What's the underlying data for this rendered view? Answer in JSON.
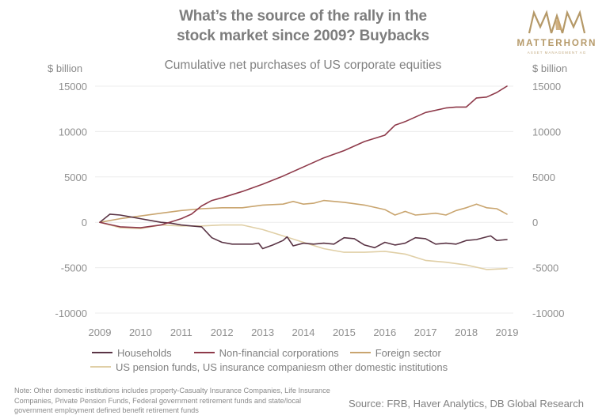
{
  "header": {
    "title_lines": [
      "What’s the source of the rally in the",
      "stock market since 2009? Buybacks"
    ],
    "subtitle": "Cumulative net purchases of US corporate equities"
  },
  "logo": {
    "mark": "MAM",
    "brand": "MATTERHORN",
    "tagline": "ASSET MANAGEMENT AG",
    "color": "#b59968"
  },
  "axes": {
    "left_unit": "$ billion",
    "right_unit": "$ billion"
  },
  "legend": {
    "items": [
      {
        "label": "Households",
        "color": "#5a3445"
      },
      {
        "label": "Non-financial corporations",
        "color": "#8e3a4a"
      },
      {
        "label": "Foreign sector",
        "color": "#c9a56f"
      },
      {
        "label": "US pension funds, US insurance companiesm other domestic institutions",
        "color": "#e0cfa6"
      }
    ]
  },
  "footer": {
    "note": "Note: Other domestic institutions includes property-Casualty Insurance Companies, Life Insurance Companies, Private Pension Funds, Federal government retirement funds and state/local government employment defined benefit retirement funds",
    "source": "Source: FRB, Haver Analytics, DB Global Research"
  },
  "chart_data": {
    "type": "line",
    "title": "What’s the source of the rally in the stock market since 2009? Buybacks",
    "subtitle": "Cumulative net purchases of US corporate equities",
    "xlabel": "",
    "ylabel": "$ billion",
    "y2label": "$ billion",
    "xlim": [
      2009,
      2019
    ],
    "ylim": [
      -10000,
      15000
    ],
    "x_ticks": [
      "2009",
      "2010",
      "2011",
      "2012",
      "2013",
      "2014",
      "2015",
      "2016",
      "2017",
      "2018",
      "2019"
    ],
    "y_ticks": [
      -10000,
      -5000,
      0,
      5000,
      10000,
      15000
    ],
    "grid": true,
    "legend_position": "bottom",
    "series": [
      {
        "name": "Households",
        "color": "#5a3445",
        "x": [
          2009.0,
          2009.25,
          2009.5,
          2009.75,
          2010.0,
          2010.25,
          2010.5,
          2010.75,
          2011.0,
          2011.25,
          2011.5,
          2011.75,
          2012.0,
          2012.25,
          2012.5,
          2012.75,
          2012.9,
          2013.0,
          2013.25,
          2013.5,
          2013.6,
          2013.75,
          2014.0,
          2014.25,
          2014.5,
          2014.75,
          2015.0,
          2015.25,
          2015.5,
          2015.75,
          2016.0,
          2016.25,
          2016.5,
          2016.75,
          2017.0,
          2017.25,
          2017.5,
          2017.75,
          2018.0,
          2018.25,
          2018.5,
          2018.6,
          2018.75,
          2019.0
        ],
        "values": [
          0,
          900,
          800,
          600,
          400,
          200,
          0,
          -100,
          -300,
          -400,
          -500,
          -1700,
          -2200,
          -2400,
          -2400,
          -2400,
          -2300,
          -2900,
          -2500,
          -2000,
          -1600,
          -2600,
          -2300,
          -2400,
          -2300,
          -2400,
          -1700,
          -1800,
          -2500,
          -2800,
          -2200,
          -2500,
          -2300,
          -1700,
          -1800,
          -2400,
          -2300,
          -2400,
          -2000,
          -1900,
          -1600,
          -1500,
          -2000,
          -1900
        ]
      },
      {
        "name": "Non-financial corporations",
        "color": "#8e3a4a",
        "x": [
          2009.0,
          2009.5,
          2010.0,
          2010.5,
          2011.0,
          2011.25,
          2011.5,
          2011.75,
          2012.0,
          2012.5,
          2013.0,
          2013.5,
          2014.0,
          2014.5,
          2015.0,
          2015.5,
          2016.0,
          2016.25,
          2016.5,
          2017.0,
          2017.5,
          2017.75,
          2018.0,
          2018.25,
          2018.5,
          2018.75,
          2019.0
        ],
        "values": [
          0,
          -500,
          -600,
          -300,
          400,
          900,
          1800,
          2400,
          2700,
          3400,
          4200,
          5100,
          6100,
          7100,
          7900,
          8900,
          9600,
          10700,
          11100,
          12100,
          12600,
          12700,
          12700,
          13700,
          13800,
          14300,
          15000
        ]
      },
      {
        "name": "Foreign sector",
        "color": "#c9a56f",
        "x": [
          2009.0,
          2009.5,
          2010.0,
          2010.5,
          2011.0,
          2011.5,
          2012.0,
          2012.5,
          2013.0,
          2013.5,
          2013.75,
          2014.0,
          2014.25,
          2014.5,
          2015.0,
          2015.5,
          2016.0,
          2016.25,
          2016.5,
          2016.75,
          2017.0,
          2017.25,
          2017.5,
          2017.75,
          2018.0,
          2018.25,
          2018.5,
          2018.75,
          2019.0
        ],
        "values": [
          0,
          400,
          700,
          1000,
          1300,
          1500,
          1600,
          1600,
          1900,
          2000,
          2300,
          2000,
          2100,
          2400,
          2200,
          1900,
          1400,
          800,
          1200,
          800,
          900,
          1000,
          800,
          1300,
          1600,
          2000,
          1600,
          1500,
          900
        ]
      },
      {
        "name": "US pension funds, US insurance companiesm other domestic institutions",
        "color": "#e0cfa6",
        "x": [
          2009.0,
          2009.5,
          2010.0,
          2010.5,
          2011.0,
          2011.5,
          2012.0,
          2012.5,
          2013.0,
          2013.5,
          2014.0,
          2014.5,
          2015.0,
          2015.5,
          2016.0,
          2016.5,
          2017.0,
          2017.5,
          2018.0,
          2018.5,
          2019.0
        ],
        "values": [
          0,
          -600,
          -700,
          -300,
          -400,
          -400,
          -300,
          -300,
          -800,
          -1500,
          -2200,
          -2900,
          -3300,
          -3300,
          -3200,
          -3500,
          -4200,
          -4400,
          -4700,
          -5200,
          -5100
        ]
      }
    ]
  }
}
